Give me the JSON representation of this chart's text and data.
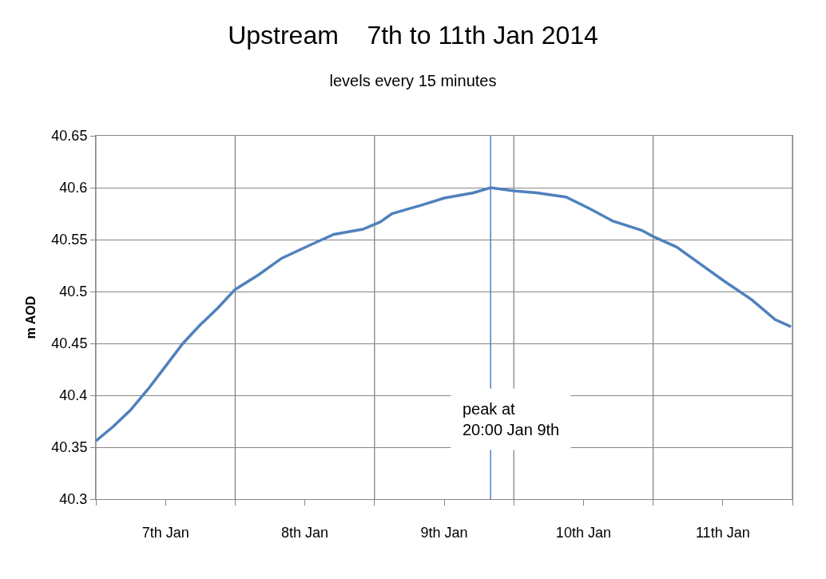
{
  "chart_data": {
    "type": "line",
    "title": "Upstream    7th to 11th Jan 2014",
    "subtitle": "levels every 15 minutes",
    "ylabel": "m AOD",
    "x": [
      "2014-01-07T00:00",
      "2014-01-07T03:00",
      "2014-01-07T06:00",
      "2014-01-07T09:00",
      "2014-01-07T12:00",
      "2014-01-07T15:00",
      "2014-01-07T18:00",
      "2014-01-07T21:00",
      "2014-01-08T00:00",
      "2014-01-08T04:00",
      "2014-01-08T08:00",
      "2014-01-08T13:00",
      "2014-01-08T17:00",
      "2014-01-08T22:00",
      "2014-01-09T01:00",
      "2014-01-09T03:00",
      "2014-01-09T08:00",
      "2014-01-09T12:00",
      "2014-01-09T17:00",
      "2014-01-09T20:00",
      "2014-01-10T00:00",
      "2014-01-10T04:00",
      "2014-01-10T09:00",
      "2014-01-10T13:00",
      "2014-01-10T17:00",
      "2014-01-10T22:00",
      "2014-01-11T00:00",
      "2014-01-11T04:00",
      "2014-01-11T08:00",
      "2014-01-11T12:00",
      "2014-01-11T17:00",
      "2014-01-11T21:00",
      "2014-01-11T23:45"
    ],
    "series": [
      {
        "color": "#4f81bd",
        "values": [
          40.356,
          40.37,
          40.386,
          40.406,
          40.428,
          40.45,
          40.468,
          40.484,
          40.502,
          40.516,
          40.532,
          40.545,
          40.555,
          40.56,
          40.567,
          40.575,
          40.583,
          40.59,
          40.595,
          40.6,
          40.597,
          40.595,
          40.591,
          40.58,
          40.568,
          40.559,
          40.553,
          40.543,
          40.527,
          40.511,
          40.492,
          40.473,
          40.466
        ]
      }
    ],
    "xlim": [
      "2014-01-07T00:00",
      "2014-01-12T00:00"
    ],
    "xticks": [
      {
        "value": "2014-01-07T00:00",
        "label": null
      },
      {
        "value": "2014-01-07T12:00",
        "label": "7th Jan"
      },
      {
        "value": "2014-01-08T00:00",
        "label": null
      },
      {
        "value": "2014-01-08T12:00",
        "label": "8th Jan"
      },
      {
        "value": "2014-01-09T00:00",
        "label": null
      },
      {
        "value": "2014-01-09T12:00",
        "label": "9th Jan"
      },
      {
        "value": "2014-01-10T00:00",
        "label": null
      },
      {
        "value": "2014-01-10T12:00",
        "label": "10th Jan"
      },
      {
        "value": "2014-01-11T00:00",
        "label": null
      },
      {
        "value": "2014-01-11T12:00",
        "label": "11th Jan"
      },
      {
        "value": "2014-01-12T00:00",
        "label": null
      }
    ],
    "ylim": [
      40.3,
      40.65
    ],
    "yticks": [
      40.3,
      40.35,
      40.4,
      40.45,
      40.5,
      40.55,
      40.6,
      40.65
    ],
    "ref_lines": [
      {
        "axis": "x",
        "value": "2014-01-09T20:00",
        "label": "peak at\n20:00 Jan 9th",
        "color": "#4f81bd"
      }
    ],
    "grid": true,
    "marker": "none",
    "line_style": "solid"
  }
}
